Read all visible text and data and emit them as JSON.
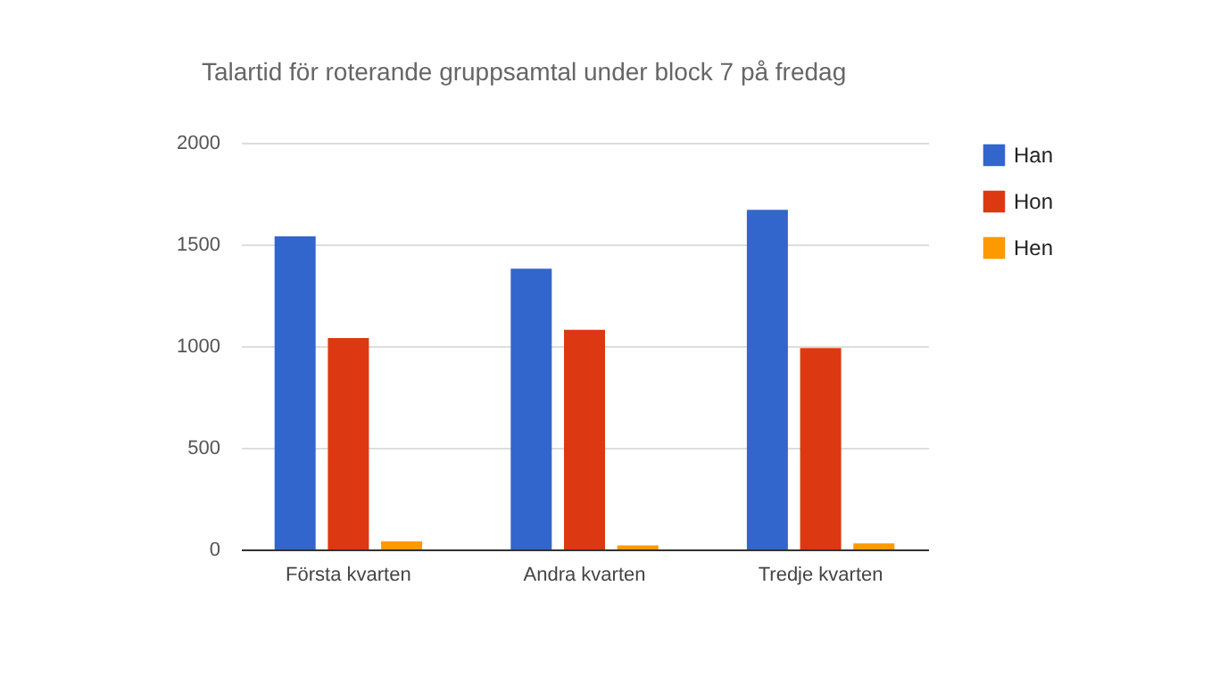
{
  "chart_data": {
    "type": "bar",
    "title": "Talartid för roterande gruppsamtal under block 7 på fredag",
    "categories": [
      "Första kvarten",
      "Andra kvarten",
      "Tredje kvarten"
    ],
    "series": [
      {
        "name": "Han",
        "color": "#3366cc",
        "values": [
          1540,
          1380,
          1670
        ]
      },
      {
        "name": "Hon",
        "color": "#dc3912",
        "values": [
          1040,
          1080,
          990
        ]
      },
      {
        "name": "Hen",
        "color": "#ff9900",
        "values": [
          40,
          20,
          30
        ]
      }
    ],
    "ylim": [
      0,
      2000
    ],
    "yticks": [
      0,
      500,
      1000,
      1500,
      2000
    ],
    "grid": "y",
    "legend": "top right"
  }
}
